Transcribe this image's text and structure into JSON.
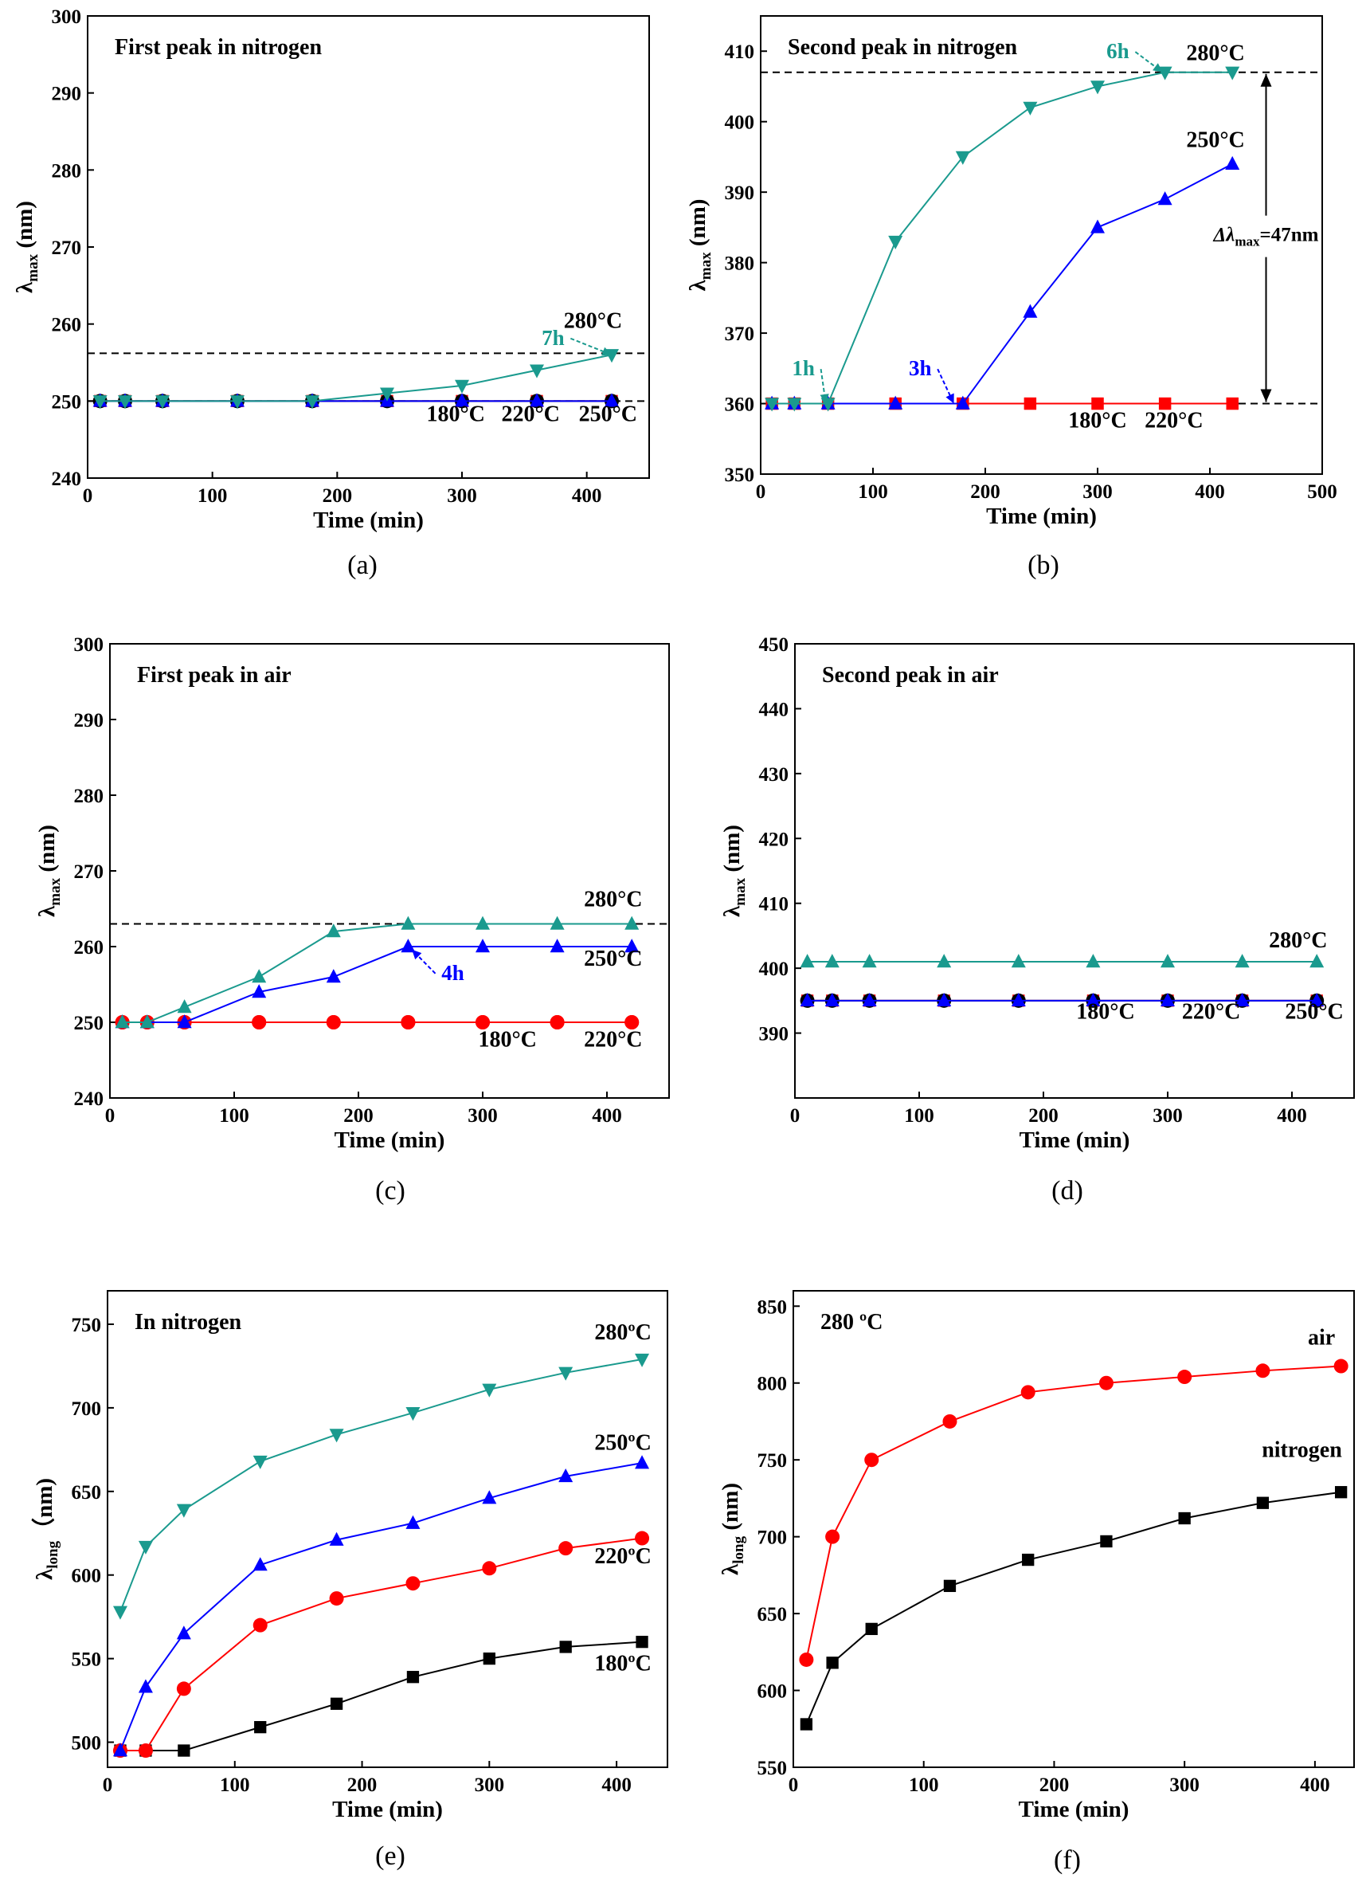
{
  "chart_data": [
    {
      "panel": "(a)",
      "type": "line",
      "title": "First peak in nitrogen",
      "xlabel": "Time (min)",
      "ylabel": "λmax (nm)",
      "ylabel_main": "λ",
      "ylabel_sub": "max",
      "ylabel_tail": " (nm)",
      "xlim": [
        0,
        450
      ],
      "ylim": [
        240,
        300
      ],
      "xticks": [
        0,
        100,
        200,
        300,
        400
      ],
      "yticks": [
        240,
        250,
        260,
        270,
        280,
        290,
        300
      ],
      "x": [
        10,
        30,
        60,
        120,
        180,
        240,
        300,
        360,
        420
      ],
      "series": [
        {
          "name": "180°C",
          "color": "#ff0000",
          "marker": "square",
          "values": [
            250,
            250,
            250,
            250,
            250,
            250,
            250,
            250,
            250
          ]
        },
        {
          "name": "220°C",
          "color": "#000000",
          "marker": "circle",
          "values": [
            250,
            250,
            250,
            250,
            250,
            250,
            250,
            250,
            250
          ]
        },
        {
          "name": "250°C",
          "color": "#0000ff",
          "marker": "triangle-up",
          "values": [
            250,
            250,
            250,
            250,
            250,
            250,
            250,
            250,
            250
          ]
        },
        {
          "name": "280°C",
          "color": "#1a9a8e",
          "marker": "triangle-down",
          "values": [
            250,
            250,
            250,
            250,
            250,
            251,
            252,
            254,
            256
          ]
        }
      ],
      "reference_lines": [
        {
          "y": 256.2
        },
        {
          "y": 250
        }
      ],
      "series_labels": [
        {
          "text": "280°C",
          "x": 405,
          "y": 259.5
        },
        {
          "text": "180°C",
          "x": 295,
          "y": 247.4
        },
        {
          "text": "220°C",
          "x": 355,
          "y": 247.4
        },
        {
          "text": "250°C",
          "x": 417,
          "y": 247.4
        }
      ],
      "annotations": [
        {
          "text": "7h",
          "x": 373,
          "y": 257.3,
          "color": "#1a9a8e",
          "arrow_to": [
            420,
            256
          ]
        }
      ]
    },
    {
      "panel": "(b)",
      "type": "line",
      "title": "Second peak in nitrogen",
      "xlabel": "Time (min)",
      "ylabel": "λmax (nm)",
      "ylabel_main": "λ",
      "ylabel_sub": "max",
      "ylabel_tail": " (nm)",
      "xlim": [
        0,
        500
      ],
      "ylim": [
        350,
        415
      ],
      "xticks": [
        0,
        100,
        200,
        300,
        400,
        500
      ],
      "yticks": [
        350,
        360,
        370,
        380,
        390,
        400,
        410
      ],
      "x": [
        10,
        30,
        60,
        120,
        180,
        240,
        300,
        360,
        420
      ],
      "series": [
        {
          "name": "180°C",
          "color": "#ff0000",
          "marker": "square",
          "values": [
            360,
            360,
            360,
            360,
            360,
            360,
            360,
            360,
            360
          ]
        },
        {
          "name": "220°C",
          "color": "#ff0000",
          "marker": "square",
          "values": [
            360,
            360,
            360,
            360,
            360,
            360,
            360,
            360,
            360
          ]
        },
        {
          "name": "250°C",
          "color": "#0000ff",
          "marker": "triangle-up",
          "values": [
            360,
            360,
            360,
            360,
            360,
            373,
            385,
            389,
            394
          ]
        },
        {
          "name": "280°C",
          "color": "#1a9a8e",
          "marker": "triangle-down",
          "values": [
            360,
            360,
            360,
            383,
            395,
            402,
            405,
            407,
            407
          ]
        }
      ],
      "reference_lines": [
        {
          "y": 407
        },
        {
          "y": 360
        }
      ],
      "series_labels": [
        {
          "text": "280°C",
          "x": 405,
          "y": 408.7
        },
        {
          "text": "250°C",
          "x": 405,
          "y": 396.4
        },
        {
          "text": "180°C",
          "x": 300,
          "y": 356.6
        },
        {
          "text": "220°C",
          "x": 368,
          "y": 356.6
        }
      ],
      "annotations": [
        {
          "text": "6h",
          "x": 318,
          "y": 409,
          "color": "#1a9a8e",
          "arrow_to": [
            358,
            407
          ]
        },
        {
          "text": "1h",
          "x": 38,
          "y": 364,
          "color": "#1a9a8e",
          "arrow_to": [
            58,
            360
          ]
        },
        {
          "text": "3h",
          "x": 142,
          "y": 364,
          "color": "#0000ff",
          "arrow_to": [
            172,
            360
          ]
        }
      ],
      "delta": {
        "label_main": "Δλ",
        "label_sub": "max",
        "label_tail": "=47nm",
        "x": 450,
        "y_from": 407,
        "y_to": 360
      }
    },
    {
      "panel": "(c)",
      "type": "line",
      "title": "First peak in air",
      "xlabel": "Time (min)",
      "ylabel": "λmax (nm)",
      "ylabel_main": "λ",
      "ylabel_sub": "max",
      "ylabel_tail": " (nm)",
      "xlim": [
        0,
        450
      ],
      "ylim": [
        240,
        300
      ],
      "xticks": [
        0,
        100,
        200,
        300,
        400
      ],
      "yticks": [
        240,
        250,
        260,
        270,
        280,
        290,
        300
      ],
      "x": [
        10,
        30,
        60,
        120,
        180,
        240,
        300,
        360,
        420
      ],
      "series": [
        {
          "name": "180°C",
          "color": "#ff0000",
          "marker": "circle",
          "values": [
            250,
            250,
            250,
            250,
            250,
            250,
            250,
            250,
            250
          ]
        },
        {
          "name": "220°C",
          "color": "#ff0000",
          "marker": "circle",
          "values": [
            250,
            250,
            250,
            250,
            250,
            250,
            250,
            250,
            250
          ]
        },
        {
          "name": "250°C",
          "color": "#0000ff",
          "marker": "triangle-up",
          "values": [
            250,
            250,
            250,
            254,
            256,
            260,
            260,
            260,
            260
          ]
        },
        {
          "name": "280°C",
          "color": "#1a9a8e",
          "marker": "triangle-up",
          "values": [
            250,
            250,
            252,
            256,
            262,
            263,
            263,
            263,
            263
          ]
        }
      ],
      "reference_lines": [
        {
          "y": 263
        }
      ],
      "series_labels": [
        {
          "text": "280°C",
          "x": 405,
          "y": 265.3
        },
        {
          "text": "250°C",
          "x": 405,
          "y": 257.5
        },
        {
          "text": "180°C",
          "x": 320,
          "y": 246.8
        },
        {
          "text": "220°C",
          "x": 405,
          "y": 246.8
        }
      ],
      "annotations": [
        {
          "text": "4h",
          "x": 276,
          "y": 255.6,
          "color": "#0000ff",
          "arrow_to": [
            243,
            259.6
          ]
        }
      ]
    },
    {
      "panel": "(d)",
      "type": "line",
      "title": "Second peak in air",
      "xlabel": "Time (min)",
      "ylabel": "λmax (nm)",
      "ylabel_main": "λ",
      "ylabel_sub": "max",
      "ylabel_tail": " (nm)",
      "xlim": [
        0,
        450
      ],
      "ylim": [
        380,
        450
      ],
      "xticks": [
        0,
        100,
        200,
        300,
        400
      ],
      "yticks": [
        390,
        400,
        410,
        420,
        430,
        440,
        450
      ],
      "x": [
        10,
        30,
        60,
        120,
        180,
        240,
        300,
        360,
        420
      ],
      "series": [
        {
          "name": "180°C",
          "color": "#ff0000",
          "marker": "square",
          "values": [
            395,
            395,
            395,
            395,
            395,
            395,
            395,
            395,
            395
          ]
        },
        {
          "name": "220°C",
          "color": "#000000",
          "marker": "circle",
          "values": [
            395,
            395,
            395,
            395,
            395,
            395,
            395,
            395,
            395
          ]
        },
        {
          "name": "250°C",
          "color": "#0000ff",
          "marker": "triangle-up",
          "values": [
            395,
            395,
            395,
            395,
            395,
            395,
            395,
            395,
            395
          ]
        },
        {
          "name": "280°C",
          "color": "#1a9a8e",
          "marker": "triangle-up",
          "values": [
            401,
            401,
            401,
            401,
            401,
            401,
            401,
            401,
            401
          ]
        }
      ],
      "reference_lines": [],
      "series_labels": [
        {
          "text": "280°C",
          "x": 405,
          "y": 403.2
        },
        {
          "text": "180°C",
          "x": 250,
          "y": 392.2
        },
        {
          "text": "220°C",
          "x": 335,
          "y": 392.2
        },
        {
          "text": "250°C",
          "x": 418,
          "y": 392.2
        }
      ],
      "annotations": []
    },
    {
      "panel": "(e)",
      "type": "line",
      "title": "In nitrogen",
      "xlabel": "Time (min)",
      "ylabel": "λlong（nm)",
      "ylabel_main": "λ",
      "ylabel_sub": "long",
      "ylabel_tail": "（nm)",
      "xlim": [
        0,
        440
      ],
      "ylim": [
        485,
        770
      ],
      "xticks": [
        0,
        100,
        200,
        300,
        400
      ],
      "yticks": [
        500,
        550,
        600,
        650,
        700,
        750
      ],
      "x": [
        10,
        30,
        60,
        120,
        180,
        240,
        300,
        360,
        420
      ],
      "series": [
        {
          "name": "180ºC",
          "color": "#000000",
          "marker": "square",
          "values": [
            495,
            495,
            495,
            509,
            523,
            539,
            550,
            557,
            560
          ]
        },
        {
          "name": "220ºC",
          "color": "#ff0000",
          "marker": "circle",
          "values": [
            495,
            495,
            532,
            570,
            586,
            595,
            604,
            616,
            622
          ]
        },
        {
          "name": "250ºC",
          "color": "#0000ff",
          "marker": "triangle-up",
          "values": [
            495,
            533,
            565,
            606,
            621,
            631,
            646,
            659,
            667
          ]
        },
        {
          "name": "280ºC",
          "color": "#1a9a8e",
          "marker": "triangle-down",
          "values": [
            578,
            617,
            639,
            668,
            684,
            697,
            711,
            721,
            729
          ]
        }
      ],
      "reference_lines": [],
      "series_labels": [
        {
          "text": "280ºC",
          "x": 405,
          "y": 741
        },
        {
          "text": "250ºC",
          "x": 405,
          "y": 675
        },
        {
          "text": "220ºC",
          "x": 405,
          "y": 607
        },
        {
          "text": "180ºC",
          "x": 405,
          "y": 543
        }
      ],
      "annotations": []
    },
    {
      "panel": "(f)",
      "type": "line",
      "title": "280 ºC",
      "xlabel": "Time (min)",
      "ylabel": "λlong (nm)",
      "ylabel_main": "λ",
      "ylabel_sub": "long",
      "ylabel_tail": " (nm)",
      "xlim": [
        0,
        430
      ],
      "ylim": [
        550,
        860
      ],
      "xticks": [
        0,
        100,
        200,
        300,
        400
      ],
      "yticks": [
        550,
        600,
        650,
        700,
        750,
        800,
        850
      ],
      "x": [
        10,
        30,
        60,
        120,
        180,
        240,
        300,
        360,
        420
      ],
      "series": [
        {
          "name": "air",
          "color": "#ff0000",
          "marker": "circle",
          "values": [
            620,
            700,
            750,
            775,
            794,
            800,
            804,
            808,
            811
          ]
        },
        {
          "name": "nitrogen",
          "color": "#000000",
          "marker": "square",
          "values": [
            578,
            618,
            640,
            668,
            685,
            697,
            712,
            722,
            729
          ]
        }
      ],
      "reference_lines": [],
      "series_labels": [
        {
          "text": "air",
          "x": 405,
          "y": 825
        },
        {
          "text": "nitrogen",
          "x": 390,
          "y": 752
        }
      ],
      "annotations": []
    }
  ]
}
